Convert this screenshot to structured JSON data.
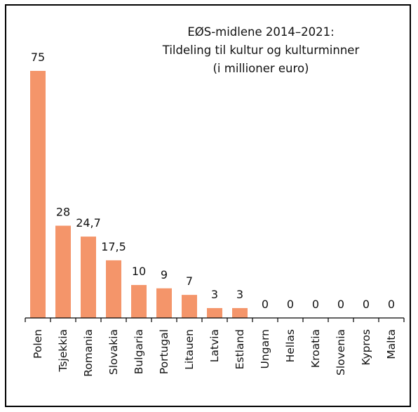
{
  "chart_data": {
    "type": "bar",
    "title": [
      "EØS-midlene 2014–2021:",
      "Tildeling til kultur og kulturminner",
      "(i millioner euro)"
    ],
    "categories": [
      "Polen",
      "Tsjekkia",
      "Romania",
      "Slovakia",
      "Bulgaria",
      "Portugal",
      "Litauen",
      "Latvia",
      "Estland",
      "Ungarn",
      "Hellas",
      "Kroatia",
      "Slovenia",
      "Kypros",
      "Malta"
    ],
    "values": [
      75,
      28,
      24.7,
      17.5,
      10,
      9,
      7,
      3,
      3,
      0,
      0,
      0,
      0,
      0,
      0
    ],
    "value_labels": [
      "75",
      "28",
      "24,7",
      "17,5",
      "10",
      "9",
      "7",
      "3",
      "3",
      "0",
      "0",
      "0",
      "0",
      "0",
      "0"
    ],
    "xlabel": "",
    "ylabel": "",
    "ylim": [
      0,
      75
    ],
    "grid": false,
    "legend": "none",
    "bar_color": "#f4956a"
  }
}
